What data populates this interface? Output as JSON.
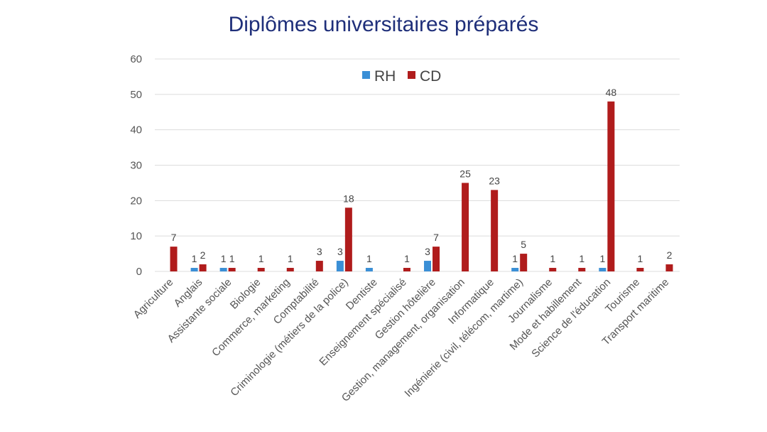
{
  "chart_data": {
    "type": "bar",
    "title": "Diplômes universitaires préparés",
    "xlabel": "",
    "ylabel": "",
    "ylim": [
      0,
      60
    ],
    "yticks": [
      0,
      10,
      20,
      30,
      40,
      50,
      60
    ],
    "grid": true,
    "legend_position": "top-center",
    "categories": [
      "Agriculture",
      "Anglais",
      "Assistante sociale",
      "Biologie",
      "Commerce, marketing",
      "Comptabilité",
      "Criminologie (métiers de la police)",
      "Dentiste",
      "Enseignement spécialisé",
      "Gestion hôtelière",
      "Gestion, management, organisation",
      "Informatique",
      "Ingénierie (civil, télécom, martime)",
      "Journalisme",
      "Mode et habillement",
      "Science de l'éducation",
      "Tourisme",
      "Transport maritime"
    ],
    "series": [
      {
        "name": "RH",
        "color": "#3a8fd6",
        "values": [
          null,
          1,
          1,
          null,
          null,
          null,
          3,
          1,
          null,
          3,
          null,
          null,
          1,
          null,
          null,
          1,
          null,
          null
        ]
      },
      {
        "name": "CD",
        "color": "#b01c1c",
        "values": [
          7,
          2,
          1,
          1,
          1,
          3,
          18,
          null,
          1,
          7,
          25,
          23,
          5,
          1,
          1,
          48,
          1,
          2
        ]
      }
    ]
  }
}
